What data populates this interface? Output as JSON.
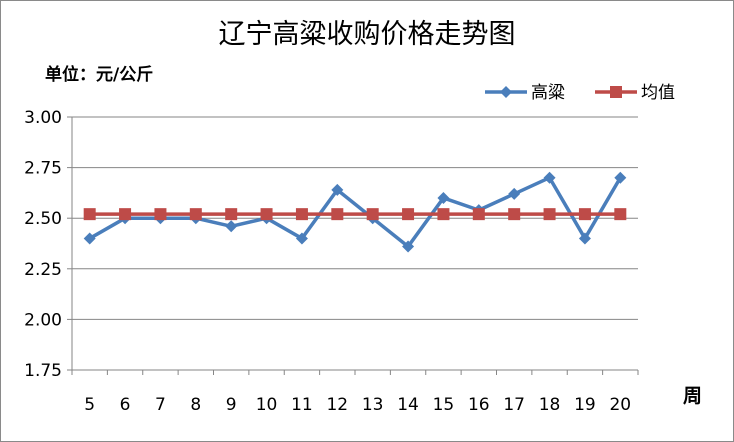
{
  "chart_data": {
    "type": "line",
    "title": "辽宁高粱收购价格走势图",
    "ylabel": "单位：元/公斤",
    "xlabel": "周",
    "x": [
      5,
      6,
      7,
      8,
      9,
      10,
      11,
      12,
      13,
      14,
      15,
      16,
      17,
      18,
      19,
      20
    ],
    "ylim": [
      1.75,
      3.0
    ],
    "yticks": [
      "1.75",
      "2.00",
      "2.25",
      "2.50",
      "2.75",
      "3.00"
    ],
    "grid": true,
    "legend_position": "top-right",
    "series": [
      {
        "name": "高粱",
        "color": "#4a7ebb",
        "marker": "diamond",
        "values": [
          2.4,
          2.5,
          2.5,
          2.5,
          2.46,
          2.5,
          2.4,
          2.64,
          2.5,
          2.36,
          2.6,
          2.54,
          2.62,
          2.7,
          2.4,
          2.7
        ]
      },
      {
        "name": "均值",
        "color": "#be4b48",
        "marker": "square",
        "values": [
          2.52,
          2.52,
          2.52,
          2.52,
          2.52,
          2.52,
          2.52,
          2.52,
          2.52,
          2.52,
          2.52,
          2.52,
          2.52,
          2.52,
          2.52,
          2.52
        ]
      }
    ]
  }
}
